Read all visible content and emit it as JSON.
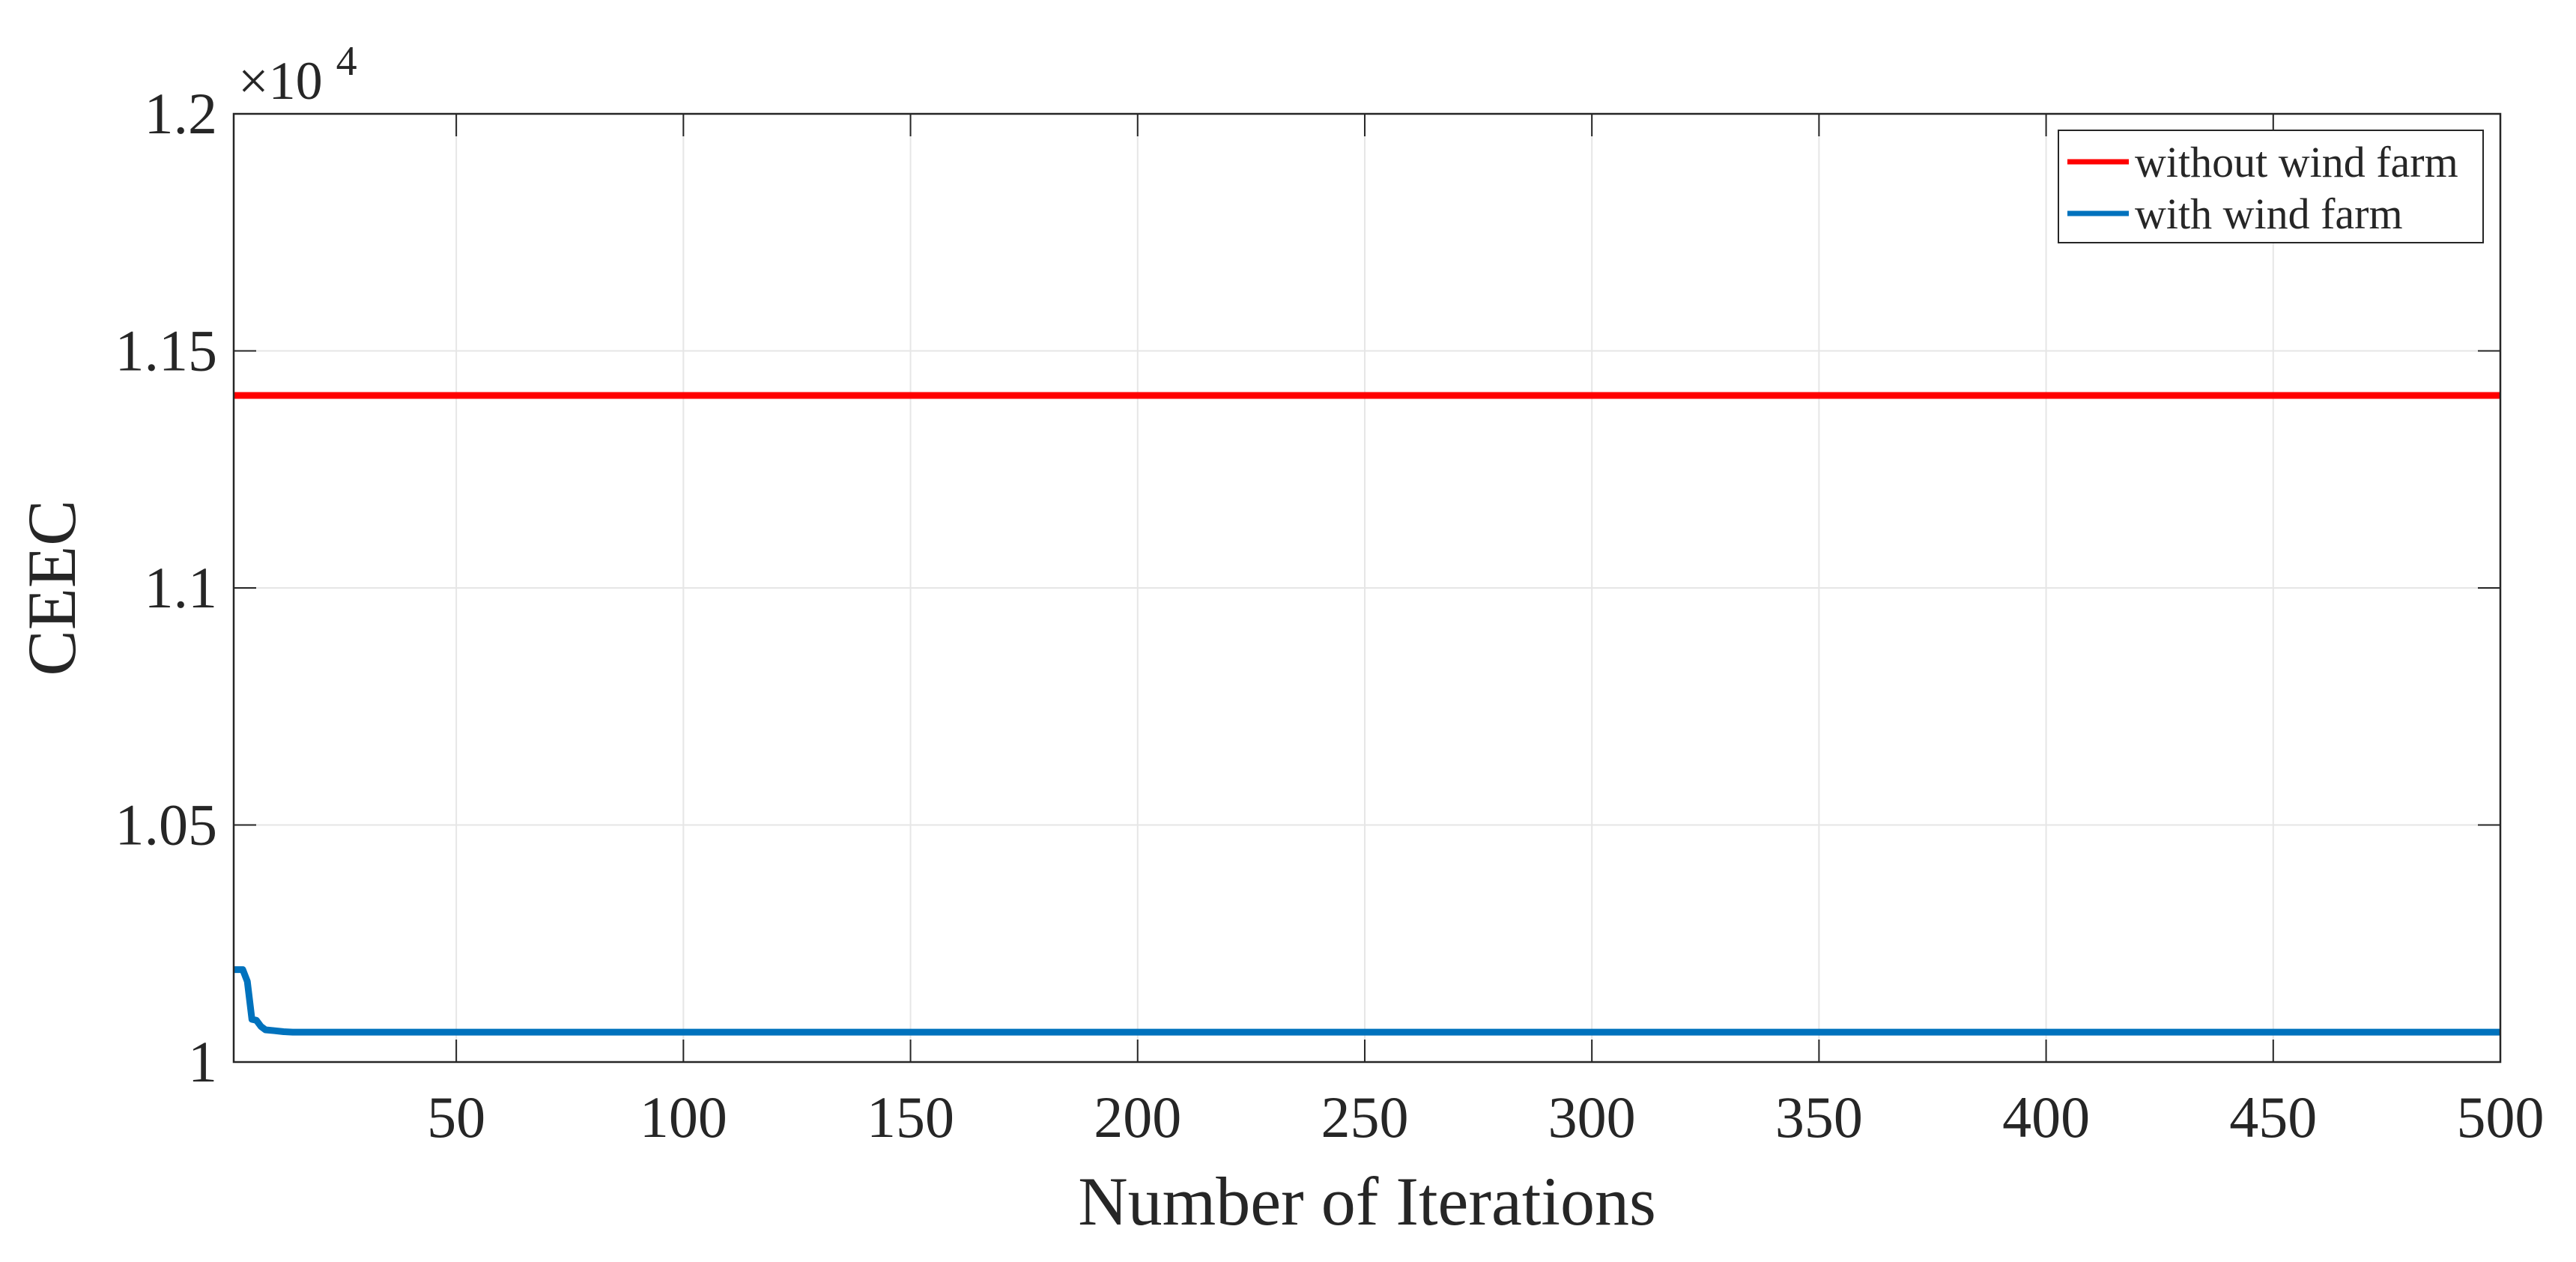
{
  "chart_data": {
    "type": "line",
    "title": "",
    "xlabel": "Number of Iterations",
    "ylabel": "CEEC",
    "y_multiplier": "×10",
    "y_multiplier_exponent": "4",
    "xlim": [
      1,
      500
    ],
    "ylim": [
      1.0,
      1.2
    ],
    "xticks": [
      50,
      100,
      150,
      200,
      250,
      300,
      350,
      400,
      450,
      500
    ],
    "xtick_labels": [
      "50",
      "100",
      "150",
      "200",
      "250",
      "300",
      "350",
      "400",
      "450",
      "500"
    ],
    "yticks": [
      1.0,
      1.05,
      1.1,
      1.15,
      1.2
    ],
    "ytick_labels": [
      "1",
      "1.05",
      "1.1",
      "1.15",
      "1.2"
    ],
    "grid": true,
    "legend_position": "top-right",
    "series": [
      {
        "name": "without wind farm",
        "color": "#ff0000",
        "x": [
          1,
          500
        ],
        "y": [
          1.1406,
          1.1406
        ]
      },
      {
        "name": "with wind farm",
        "color": "#0072bd",
        "x": [
          1,
          3,
          4,
          5,
          6,
          7,
          8,
          10,
          12,
          14,
          500
        ],
        "y": [
          1.0195,
          1.0195,
          1.017,
          1.009,
          1.0088,
          1.0075,
          1.0068,
          1.0066,
          1.0064,
          1.0063,
          1.0063
        ]
      }
    ]
  }
}
